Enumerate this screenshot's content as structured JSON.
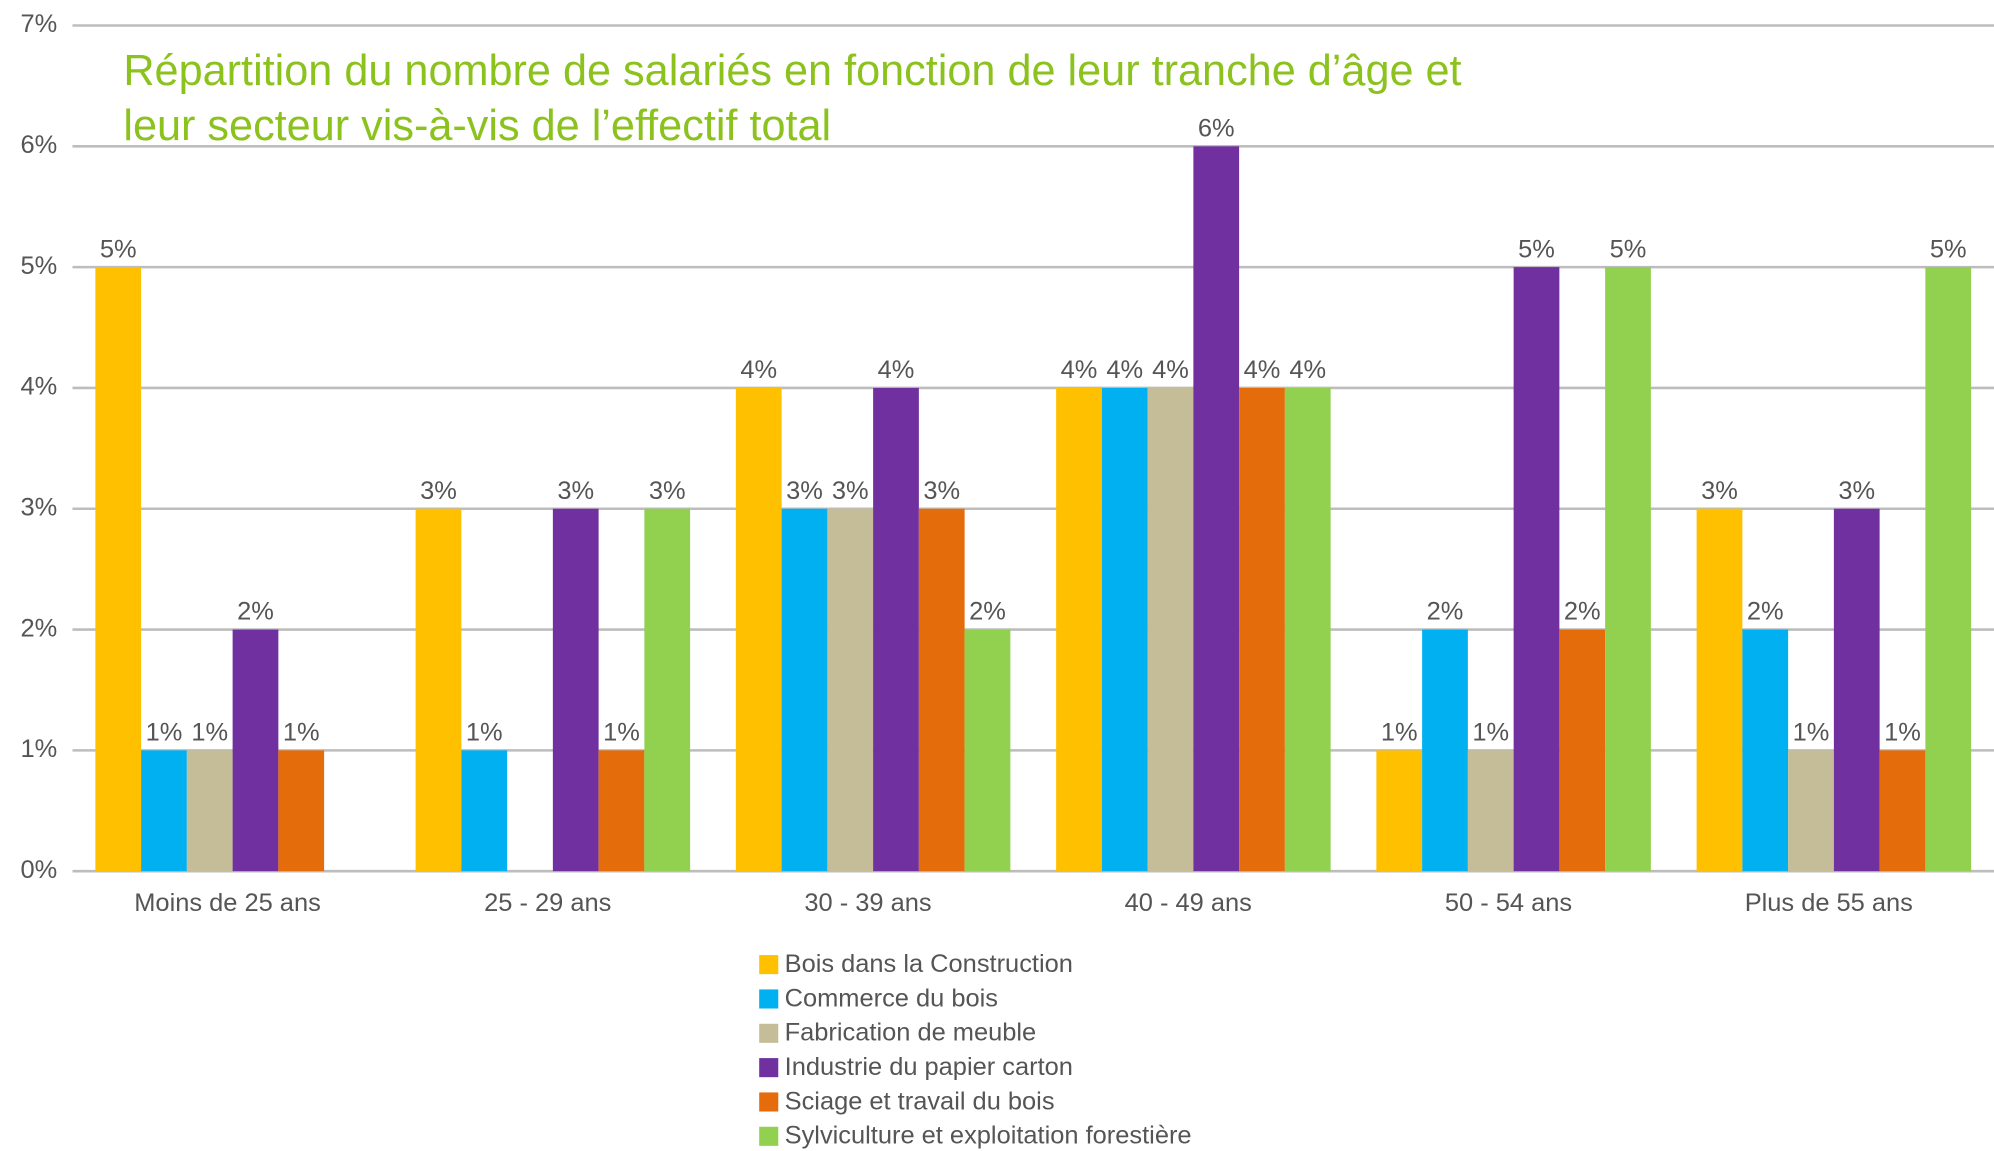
{
  "chart_data": {
    "type": "bar",
    "title": [
      "Répartition du nombre de salariés en fonction de leur tranche d’âge et",
      "leur secteur vis-à-vis de l’effectif total"
    ],
    "categories": [
      "Moins de 25 ans",
      "25 - 29 ans",
      "30 - 39 ans",
      "40 - 49 ans",
      "50 - 54 ans",
      "Plus de 55 ans"
    ],
    "series": [
      {
        "name": "Bois dans la Construction",
        "color": "#FFC000",
        "values": [
          5,
          3,
          4,
          4,
          1,
          3
        ],
        "value_labels": [
          "5%",
          "3%",
          "4%",
          "4%",
          "1%",
          "3%"
        ]
      },
      {
        "name": "Commerce du bois",
        "color": "#00B0F0",
        "values": [
          1,
          1,
          3,
          4,
          2,
          2
        ],
        "value_labels": [
          "1%",
          "1%",
          "3%",
          "4%",
          "2%",
          "2%"
        ]
      },
      {
        "name": "Fabrication de meuble",
        "color": "#C4BD97",
        "values": [
          1,
          null,
          3,
          4,
          1,
          1
        ],
        "value_labels": [
          "1%",
          null,
          "3%",
          "4%",
          "1%",
          "1%"
        ]
      },
      {
        "name": "Industrie du papier carton",
        "color": "#7030A0",
        "values": [
          2,
          3,
          4,
          6,
          5,
          3
        ],
        "value_labels": [
          "2%",
          "3%",
          "4%",
          "6%",
          "5%",
          "3%"
        ]
      },
      {
        "name": "Sciage et travail du bois",
        "color": "#E46C0A",
        "values": [
          1,
          1,
          3,
          4,
          2,
          1
        ],
        "value_labels": [
          "1%",
          "1%",
          "3%",
          "4%",
          "2%",
          "1%"
        ]
      },
      {
        "name": "Sylviculture et exploitation forestière",
        "color": "#92D050",
        "values": [
          null,
          3,
          2,
          4,
          5,
          5
        ],
        "value_labels": [
          null,
          "3%",
          "2%",
          "4%",
          "5%",
          "5%"
        ]
      }
    ],
    "ylim": [
      0,
      7
    ],
    "yticks": [
      {
        "value": 0,
        "label": "0%"
      },
      {
        "value": 1,
        "label": "1%"
      },
      {
        "value": 2,
        "label": "2%"
      },
      {
        "value": 3,
        "label": "3%"
      },
      {
        "value": 4,
        "label": "4%"
      },
      {
        "value": 5,
        "label": "5%"
      },
      {
        "value": 6,
        "label": "6%"
      },
      {
        "value": 7,
        "label": "7%"
      }
    ],
    "grid": true
  }
}
